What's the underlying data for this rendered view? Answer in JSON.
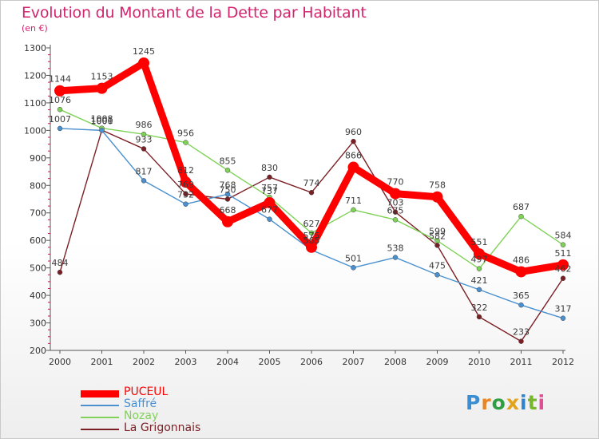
{
  "title": "Evolution du Montant de la Dette par Habitant",
  "unit": "(en €)",
  "brand": {
    "letters": [
      "P",
      "r",
      "o",
      "x",
      "i",
      "t",
      "i"
    ],
    "colors": [
      "#3a8fd4",
      "#e98524",
      "#2f9e44",
      "#e2a31c",
      "#2f83c8",
      "#78b72c",
      "#e04e94"
    ]
  },
  "chart_data": {
    "type": "line",
    "x": [
      "2000",
      "2001",
      "2002",
      "2003",
      "2004",
      "2005",
      "2006",
      "2007",
      "2008",
      "2009",
      "2010",
      "2011",
      "2012"
    ],
    "ylim": [
      200,
      1300
    ],
    "yticks": [
      "200",
      "300",
      "400",
      "500",
      "600",
      "700",
      "800",
      "900",
      "1000",
      "1100",
      "1200",
      "1300"
    ],
    "grid": false,
    "legend_position": "bottom-left",
    "series": [
      {
        "name": "PUCEUL",
        "color": "#ff0000",
        "values": [
          1144,
          1153,
          1245,
          812,
          668,
          737,
          575,
          866,
          770,
          758,
          551,
          486,
          511
        ],
        "labels": [
          "1144",
          "1153",
          "1245",
          "812",
          "668",
          "737",
          "575",
          "866",
          "770",
          "758",
          "551",
          "486",
          "511"
        ]
      },
      {
        "name": "Saffré",
        "color": "#4a90cf",
        "values": [
          1007,
          1000,
          817,
          732,
          768,
          677,
          565,
          501,
          538,
          475,
          421,
          365,
          317
        ],
        "labels": [
          "1007",
          "1000",
          "817",
          "732",
          "768",
          "677",
          "565",
          "501",
          "538",
          "475",
          "421",
          "365",
          "317"
        ]
      },
      {
        "name": "Nozay",
        "color": "#7fd257",
        "values": [
          1076,
          1008,
          986,
          956,
          855,
          757,
          627,
          711,
          675,
          599,
          497,
          687,
          584
        ],
        "labels": [
          "1076",
          "1008",
          "986",
          "956",
          "855",
          "757",
          "627",
          "711",
          "675",
          "599",
          "497",
          "687",
          "584"
        ]
      },
      {
        "name": "La Grigonnais",
        "color": "#7b1f24",
        "values": [
          484,
          1001,
          933,
          769,
          750,
          830,
          774,
          960,
          703,
          582,
          322,
          233,
          462
        ],
        "labels": [
          "484",
          "1001",
          "933",
          "769",
          "750",
          "830",
          "774",
          "960",
          "703",
          "582",
          "322",
          "233",
          "462"
        ]
      }
    ]
  }
}
